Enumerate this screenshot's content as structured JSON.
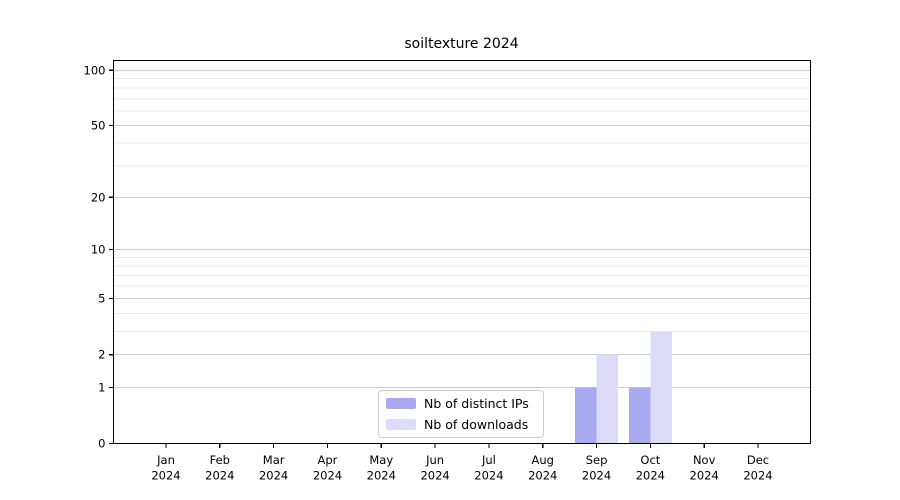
{
  "chart_data": {
    "type": "bar",
    "title": "soiltexture 2024",
    "categories": [
      "Jan",
      "Feb",
      "Mar",
      "Apr",
      "May",
      "Jun",
      "Jul",
      "Aug",
      "Sep",
      "Oct",
      "Nov",
      "Dec"
    ],
    "category_year": "2024",
    "series": [
      {
        "name": "Nb of distinct IPs",
        "color": "#a9a9f0",
        "values": [
          0,
          0,
          0,
          0,
          0,
          0,
          0,
          0,
          1,
          1,
          0,
          0
        ]
      },
      {
        "name": "Nb of downloads",
        "color": "#dcdcf8",
        "values": [
          0,
          0,
          0,
          0,
          0,
          0,
          0,
          0,
          2,
          3,
          0,
          0
        ]
      }
    ],
    "xlabel": "",
    "ylabel": "",
    "yscale": "log1p",
    "ylim": [
      0,
      113
    ],
    "ytick_labels": [
      0,
      1,
      2,
      5,
      10,
      20,
      50,
      100
    ],
    "yticks_minor": [
      3,
      4,
      6,
      7,
      8,
      9,
      30,
      40,
      60,
      70,
      80,
      90
    ],
    "grid": true,
    "legend_position": "lower center"
  },
  "colors": {
    "grid_major": "#cccccc",
    "grid_minor": "#ebebeb",
    "axis": "#000000",
    "text": "#000000",
    "legend_border": "#cccccc",
    "background": "#ffffff"
  }
}
